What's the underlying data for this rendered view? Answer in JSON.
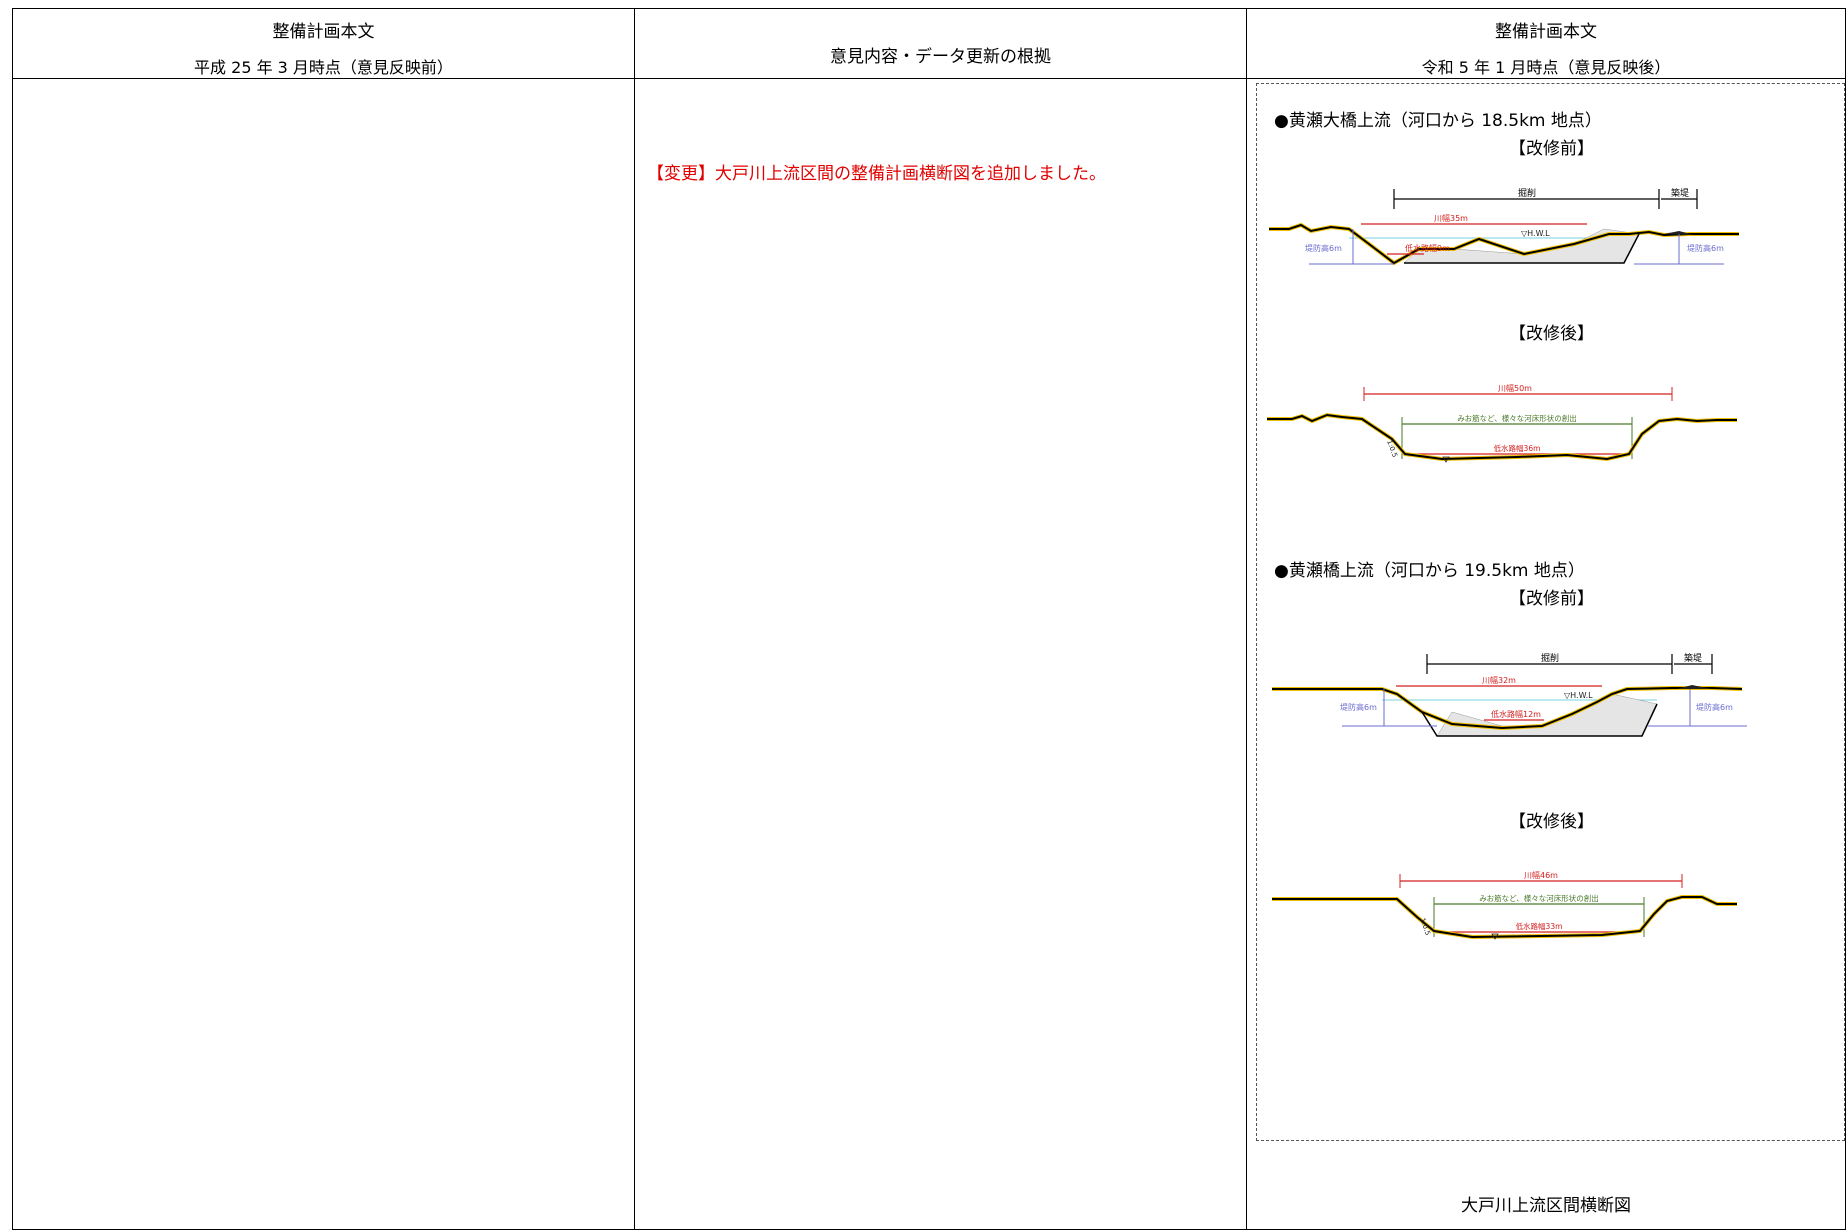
{
  "columns": {
    "left": {
      "title": "整備計画本文",
      "subtitle": "平成 25 年 3 月時点（意見反映前）"
    },
    "middle": {
      "title": "意見内容・データ更新の根拠"
    },
    "right": {
      "title": "整備計画本文",
      "subtitle": "令和 5 年 1 月時点（意見反映後）"
    }
  },
  "change_note": "【変更】大戸川上流区間の整備計画横断図を追加しました。",
  "figure": {
    "caption": "大戸川上流区間横断図",
    "sections": [
      {
        "title": "●黄瀬大橋上流（河口から 18.5km 地点）",
        "before": {
          "label": "【改修前】",
          "excavation": "掘削",
          "embankment": "築堤",
          "river_width": "川幅35m",
          "hwl": "▽H.W.L",
          "low_water_width": "低水路幅9m",
          "levee_height_left": "堤防高6m",
          "levee_height_right": "堤防高6m"
        },
        "after": {
          "label": "【改修後】",
          "river_width": "川幅50m",
          "note": "みお筋など、様々な河床形状の創出",
          "low_water_width": "低水路幅36m",
          "slope": "1:0.5"
        }
      },
      {
        "title": "●黄瀬橋上流（河口から 19.5km 地点）",
        "before": {
          "label": "【改修前】",
          "excavation": "掘削",
          "embankment": "築堤",
          "river_width": "川幅32m",
          "hwl": "▽H.W.L",
          "low_water_width": "低水路幅12m",
          "levee_height_left": "堤防高6m",
          "levee_height_right": "堤防高6m"
        },
        "after": {
          "label": "【改修後】",
          "river_width": "川幅46m",
          "note": "みお筋など、様々な河床形状の創出",
          "low_water_width": "低水路幅33m",
          "slope": "1:0.5"
        }
      }
    ]
  },
  "colors": {
    "dimension_red": "#d42020",
    "dimension_green": "#4a7a2a",
    "levee_blue": "#6b6bcf",
    "hwl_cyan": "#7ad0e0",
    "ground_yellow": "#f0c000"
  }
}
